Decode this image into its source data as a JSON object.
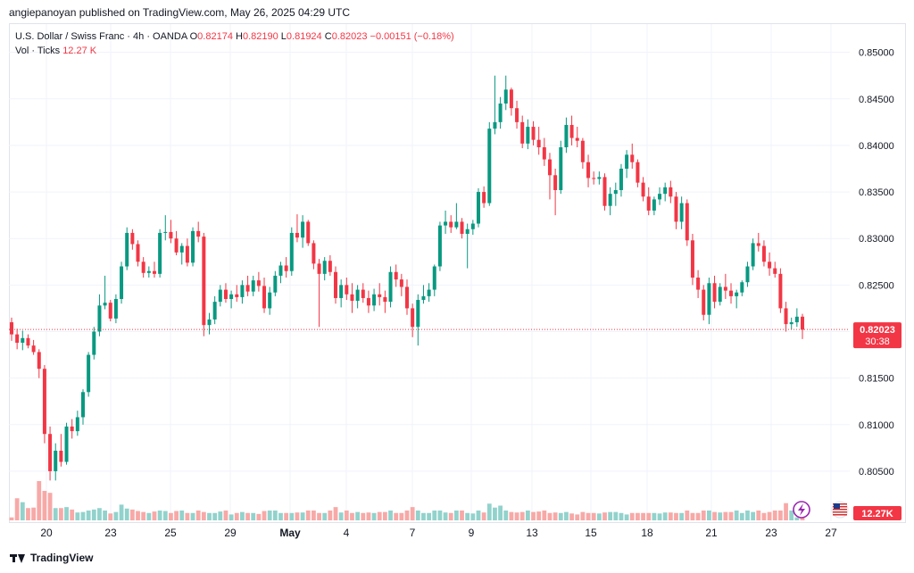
{
  "header": {
    "published": "angiepanoyan published on TradingView.com, May 26, 2025 04:29 UTC"
  },
  "legend": {
    "symbol": "U.S. Dollar / Swiss Franc · 4h · OANDA",
    "o_label": "O",
    "o": "0.82174",
    "h_label": "H",
    "h": "0.82190",
    "l_label": "L",
    "l": "0.81924",
    "c_label": "C",
    "c": "0.82023",
    "change": "−0.00151 (−0.18%)",
    "vol_label": "Vol · Ticks",
    "vol": "12.27 K"
  },
  "footer": {
    "brand": "TradingView"
  },
  "colors": {
    "up": "#089981",
    "down": "#f23645",
    "vol_up": "#92d2cc",
    "vol_down": "#f7a9a7",
    "last_tag": "#f23645",
    "vol_tag": "#f23645"
  },
  "icons": {
    "lightning": "lightning-icon",
    "flag": "us-flag-icon"
  },
  "chart_data": {
    "type": "candlestick",
    "symbol": "USDCHF",
    "timeframe": "4h",
    "ylim": [
      0.8025,
      0.8515
    ],
    "y_ticks": [
      "0.80500",
      "0.81000",
      "0.81500",
      "0.82000",
      "0.82500",
      "0.83000",
      "0.83500",
      "0.84000",
      "0.84500",
      "0.85000"
    ],
    "x_tick_labels": [
      "20",
      "23",
      "25",
      "29",
      "May",
      "4",
      "7",
      "9",
      "13",
      "15",
      "18",
      "21",
      "23",
      "27"
    ],
    "last_price_tag": "0.82023",
    "countdown": "30:38",
    "volume_tag": "12.27K",
    "candles": [
      [
        0.821,
        0.8215,
        0.819,
        0.8197,
        6
      ],
      [
        0.8197,
        0.8203,
        0.8181,
        0.8188,
        45
      ],
      [
        0.8188,
        0.8201,
        0.818,
        0.8193,
        37
      ],
      [
        0.8193,
        0.8197,
        0.8182,
        0.8185,
        25
      ],
      [
        0.8185,
        0.8191,
        0.8175,
        0.8178,
        26
      ],
      [
        0.8178,
        0.8181,
        0.815,
        0.816,
        80
      ],
      [
        0.816,
        0.8164,
        0.808,
        0.809,
        60
      ],
      [
        0.809,
        0.8098,
        0.804,
        0.805,
        56
      ],
      [
        0.805,
        0.808,
        0.804,
        0.8072,
        25
      ],
      [
        0.8072,
        0.809,
        0.8055,
        0.806,
        25
      ],
      [
        0.806,
        0.8102,
        0.8057,
        0.8098,
        27
      ],
      [
        0.8098,
        0.8106,
        0.8085,
        0.8093,
        22
      ],
      [
        0.8093,
        0.8115,
        0.8088,
        0.8108,
        16
      ],
      [
        0.8108,
        0.8138,
        0.81,
        0.8135,
        17
      ],
      [
        0.8135,
        0.8178,
        0.813,
        0.8175,
        20
      ],
      [
        0.8175,
        0.8205,
        0.817,
        0.82,
        22
      ],
      [
        0.82,
        0.824,
        0.8195,
        0.8228,
        25
      ],
      [
        0.8228,
        0.826,
        0.8224,
        0.8231,
        20
      ],
      [
        0.8231,
        0.8234,
        0.8211,
        0.8214,
        14
      ],
      [
        0.8214,
        0.824,
        0.8209,
        0.8235,
        17
      ],
      [
        0.8235,
        0.8275,
        0.823,
        0.827,
        32
      ],
      [
        0.827,
        0.8312,
        0.8266,
        0.8306,
        24
      ],
      [
        0.8306,
        0.831,
        0.8288,
        0.8294,
        22
      ],
      [
        0.8294,
        0.8298,
        0.827,
        0.8275,
        19
      ],
      [
        0.8275,
        0.828,
        0.8258,
        0.8263,
        17
      ],
      [
        0.8263,
        0.827,
        0.8258,
        0.8265,
        15
      ],
      [
        0.8265,
        0.8275,
        0.8258,
        0.8262,
        18
      ],
      [
        0.8262,
        0.831,
        0.8258,
        0.8306,
        20
      ],
      [
        0.8306,
        0.8325,
        0.8298,
        0.8307,
        19
      ],
      [
        0.8307,
        0.832,
        0.8295,
        0.83,
        15
      ],
      [
        0.83,
        0.8308,
        0.8282,
        0.8285,
        19
      ],
      [
        0.8285,
        0.8295,
        0.8272,
        0.8292,
        20
      ],
      [
        0.8292,
        0.83,
        0.827,
        0.8274,
        15
      ],
      [
        0.8274,
        0.8312,
        0.827,
        0.8308,
        15
      ],
      [
        0.8308,
        0.8318,
        0.8296,
        0.8302,
        20
      ],
      [
        0.8302,
        0.8306,
        0.8195,
        0.8207,
        17
      ],
      [
        0.8207,
        0.822,
        0.8197,
        0.8213,
        15
      ],
      [
        0.8213,
        0.8238,
        0.8208,
        0.8232,
        15
      ],
      [
        0.8232,
        0.825,
        0.8227,
        0.8245,
        18
      ],
      [
        0.8245,
        0.8252,
        0.8231,
        0.8235,
        20
      ],
      [
        0.8235,
        0.8244,
        0.8225,
        0.824,
        12
      ],
      [
        0.824,
        0.825,
        0.8232,
        0.8237,
        15
      ],
      [
        0.8237,
        0.8255,
        0.823,
        0.825,
        17
      ],
      [
        0.825,
        0.826,
        0.8238,
        0.8243,
        15
      ],
      [
        0.8243,
        0.826,
        0.8238,
        0.8255,
        15
      ],
      [
        0.8255,
        0.8264,
        0.8243,
        0.8249,
        13
      ],
      [
        0.8249,
        0.8258,
        0.822,
        0.8225,
        19
      ],
      [
        0.8225,
        0.8248,
        0.8218,
        0.8242,
        20
      ],
      [
        0.8242,
        0.8265,
        0.8238,
        0.826,
        20
      ],
      [
        0.826,
        0.8275,
        0.8252,
        0.8271,
        15
      ],
      [
        0.8271,
        0.828,
        0.8258,
        0.8265,
        15
      ],
      [
        0.8265,
        0.8312,
        0.826,
        0.8306,
        15
      ],
      [
        0.8306,
        0.8326,
        0.8296,
        0.8301,
        16
      ],
      [
        0.8301,
        0.8325,
        0.829,
        0.8318,
        16
      ],
      [
        0.8318,
        0.832,
        0.8292,
        0.8295,
        20
      ],
      [
        0.8295,
        0.8298,
        0.8267,
        0.8273,
        20
      ],
      [
        0.8273,
        0.8278,
        0.8205,
        0.8262,
        15
      ],
      [
        0.8262,
        0.828,
        0.8255,
        0.8276,
        15
      ],
      [
        0.8276,
        0.8282,
        0.826,
        0.8264,
        20
      ],
      [
        0.8264,
        0.827,
        0.823,
        0.8236,
        27
      ],
      [
        0.8236,
        0.8256,
        0.8226,
        0.825,
        16
      ],
      [
        0.825,
        0.8258,
        0.8234,
        0.824,
        20
      ],
      [
        0.824,
        0.8252,
        0.822,
        0.8233,
        15
      ],
      [
        0.8233,
        0.825,
        0.8225,
        0.8245,
        17
      ],
      [
        0.8245,
        0.8252,
        0.8231,
        0.8236,
        15
      ],
      [
        0.8236,
        0.8244,
        0.822,
        0.8228,
        16
      ],
      [
        0.8228,
        0.8246,
        0.8222,
        0.824,
        15
      ],
      [
        0.824,
        0.8252,
        0.8228,
        0.8237,
        17
      ],
      [
        0.8237,
        0.8244,
        0.822,
        0.8232,
        17
      ],
      [
        0.8232,
        0.827,
        0.8226,
        0.8264,
        20
      ],
      [
        0.8264,
        0.8272,
        0.8248,
        0.8256,
        15
      ],
      [
        0.8256,
        0.8262,
        0.8238,
        0.8248,
        15
      ],
      [
        0.8248,
        0.8256,
        0.8218,
        0.8225,
        20
      ],
      [
        0.8225,
        0.823,
        0.8194,
        0.8205,
        27
      ],
      [
        0.8205,
        0.824,
        0.8185,
        0.8234,
        20
      ],
      [
        0.8234,
        0.825,
        0.823,
        0.8238,
        15
      ],
      [
        0.8238,
        0.8252,
        0.8232,
        0.8245,
        15
      ],
      [
        0.8245,
        0.8272,
        0.8238,
        0.827,
        20
      ],
      [
        0.827,
        0.8318,
        0.8265,
        0.8314,
        20
      ],
      [
        0.8314,
        0.833,
        0.8305,
        0.8318,
        16
      ],
      [
        0.8318,
        0.8325,
        0.8306,
        0.8312,
        15
      ],
      [
        0.8312,
        0.8338,
        0.831,
        0.8318,
        20
      ],
      [
        0.8318,
        0.8322,
        0.83,
        0.8305,
        20
      ],
      [
        0.8305,
        0.8316,
        0.8268,
        0.831,
        15
      ],
      [
        0.831,
        0.832,
        0.8304,
        0.8316,
        14
      ],
      [
        0.8316,
        0.8354,
        0.8312,
        0.835,
        20
      ],
      [
        0.835,
        0.8356,
        0.8333,
        0.8338,
        16
      ],
      [
        0.8338,
        0.8425,
        0.8335,
        0.8418,
        34
      ],
      [
        0.8418,
        0.8475,
        0.8412,
        0.8425,
        26
      ],
      [
        0.8425,
        0.8452,
        0.8418,
        0.8445,
        30
      ],
      [
        0.8445,
        0.8475,
        0.8438,
        0.846,
        20
      ],
      [
        0.846,
        0.8462,
        0.8432,
        0.844,
        17
      ],
      [
        0.844,
        0.8448,
        0.8418,
        0.8425,
        16
      ],
      [
        0.8425,
        0.8432,
        0.8397,
        0.8402,
        17
      ],
      [
        0.8402,
        0.8428,
        0.8396,
        0.842,
        20
      ],
      [
        0.842,
        0.8426,
        0.84,
        0.8406,
        17
      ],
      [
        0.8406,
        0.842,
        0.839,
        0.8398,
        18
      ],
      [
        0.8398,
        0.8408,
        0.8378,
        0.8385,
        20
      ],
      [
        0.8385,
        0.8392,
        0.8342,
        0.8368,
        15
      ],
      [
        0.8368,
        0.8375,
        0.8325,
        0.8352,
        16
      ],
      [
        0.8352,
        0.8405,
        0.8348,
        0.8398,
        15
      ],
      [
        0.8398,
        0.843,
        0.8392,
        0.8422,
        17
      ],
      [
        0.8422,
        0.8432,
        0.84,
        0.8408,
        14
      ],
      [
        0.8408,
        0.842,
        0.8398,
        0.8405,
        12
      ],
      [
        0.8405,
        0.8408,
        0.8375,
        0.8382,
        17
      ],
      [
        0.8382,
        0.839,
        0.8355,
        0.8365,
        15
      ],
      [
        0.8365,
        0.8372,
        0.8358,
        0.8364,
        15
      ],
      [
        0.8364,
        0.8372,
        0.8358,
        0.8366,
        14
      ],
      [
        0.8366,
        0.837,
        0.833,
        0.8335,
        16
      ],
      [
        0.8335,
        0.8355,
        0.8325,
        0.8348,
        17
      ],
      [
        0.8348,
        0.836,
        0.8335,
        0.8352,
        17
      ],
      [
        0.8352,
        0.838,
        0.8345,
        0.8375,
        15
      ],
      [
        0.8375,
        0.8395,
        0.8365,
        0.839,
        12
      ],
      [
        0.839,
        0.8402,
        0.8375,
        0.8382,
        15
      ],
      [
        0.8382,
        0.8385,
        0.8355,
        0.836,
        15
      ],
      [
        0.836,
        0.8366,
        0.834,
        0.8345,
        15
      ],
      [
        0.8345,
        0.8355,
        0.8325,
        0.833,
        15
      ],
      [
        0.833,
        0.8345,
        0.8325,
        0.8342,
        15
      ],
      [
        0.8342,
        0.8355,
        0.8336,
        0.8348,
        14
      ],
      [
        0.8348,
        0.836,
        0.834,
        0.8355,
        16
      ],
      [
        0.8355,
        0.8362,
        0.8338,
        0.8345,
        16
      ],
      [
        0.8345,
        0.835,
        0.831,
        0.8318,
        15
      ],
      [
        0.8318,
        0.8345,
        0.831,
        0.8338,
        15
      ],
      [
        0.8338,
        0.8342,
        0.8292,
        0.8298,
        20
      ],
      [
        0.8298,
        0.8305,
        0.825,
        0.8258,
        15
      ],
      [
        0.8258,
        0.8266,
        0.8236,
        0.8245,
        15
      ],
      [
        0.8245,
        0.825,
        0.8212,
        0.8218,
        20
      ],
      [
        0.8218,
        0.8258,
        0.8208,
        0.8252,
        20
      ],
      [
        0.8252,
        0.826,
        0.8225,
        0.8232,
        17
      ],
      [
        0.8232,
        0.8252,
        0.8228,
        0.8248,
        16
      ],
      [
        0.8248,
        0.8262,
        0.8235,
        0.8244,
        17
      ],
      [
        0.8244,
        0.8252,
        0.823,
        0.8238,
        17
      ],
      [
        0.8238,
        0.8245,
        0.8225,
        0.8242,
        20
      ],
      [
        0.8242,
        0.8255,
        0.8238,
        0.8253,
        15
      ],
      [
        0.8253,
        0.8275,
        0.8248,
        0.827,
        20
      ],
      [
        0.827,
        0.83,
        0.8266,
        0.8295,
        17
      ],
      [
        0.8295,
        0.8306,
        0.8286,
        0.8292,
        20
      ],
      [
        0.8292,
        0.8298,
        0.827,
        0.8275,
        15
      ],
      [
        0.8275,
        0.8285,
        0.826,
        0.8268,
        17
      ],
      [
        0.8268,
        0.8275,
        0.8258,
        0.8262,
        20
      ],
      [
        0.8262,
        0.8268,
        0.822,
        0.8225,
        20
      ],
      [
        0.8225,
        0.8232,
        0.82,
        0.8208,
        35
      ],
      [
        0.8208,
        0.8215,
        0.8202,
        0.821,
        20
      ],
      [
        0.821,
        0.8225,
        0.8205,
        0.8216,
        6
      ],
      [
        0.8216,
        0.8219,
        0.8192,
        0.8202,
        8
      ]
    ]
  }
}
